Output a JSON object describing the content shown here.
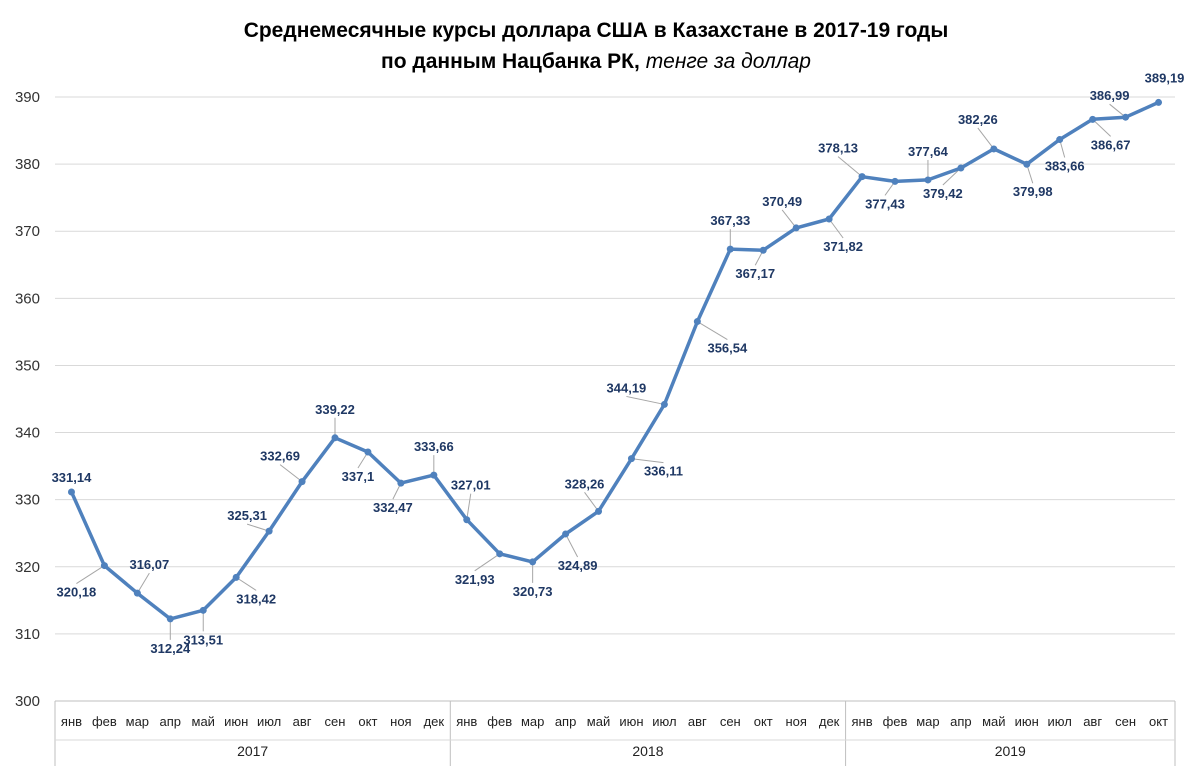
{
  "chart_data": {
    "type": "line",
    "title_main": "Среднемесячные курсы доллара США в Казахстане в 2017-19 годы",
    "title_sub_bold": "по данным Нацбанка РК,",
    "title_sub_italic": "тенге за доллар",
    "ylim": [
      300,
      390
    ],
    "yticks": [
      "300",
      "310",
      "320",
      "330",
      "340",
      "350",
      "360",
      "370",
      "380",
      "390"
    ],
    "grid": true,
    "line_color": "#4f81bd",
    "label_color": "#1f3864",
    "years": [
      {
        "label": "2017",
        "months": 12
      },
      {
        "label": "2018",
        "months": 12
      },
      {
        "label": "2019",
        "months": 10
      }
    ],
    "categories": [
      "янв",
      "фев",
      "мар",
      "апр",
      "май",
      "июн",
      "июл",
      "авг",
      "сен",
      "окт",
      "ноя",
      "дек",
      "янв",
      "фев",
      "мар",
      "апр",
      "май",
      "июн",
      "июл",
      "авг",
      "сен",
      "окт",
      "ноя",
      "дек",
      "янв",
      "фев",
      "мар",
      "апр",
      "май",
      "июн",
      "июл",
      "авг",
      "сен",
      "окт"
    ],
    "values": [
      331.14,
      320.18,
      316.07,
      312.24,
      313.51,
      318.42,
      325.31,
      332.69,
      339.22,
      337.1,
      332.47,
      333.66,
      327.01,
      321.93,
      320.73,
      324.89,
      328.26,
      336.11,
      344.19,
      356.54,
      367.33,
      367.17,
      370.49,
      371.82,
      378.13,
      377.43,
      377.64,
      379.42,
      382.26,
      379.98,
      383.66,
      386.67,
      386.99,
      389.19
    ],
    "value_labels": [
      "331,14",
      "320,18",
      "316,07",
      "312,24",
      "313,51",
      "318,42",
      "325,31",
      "332,69",
      "339,22",
      "337,1",
      "332,47",
      "333,66",
      "327,01",
      "321,93",
      "320,73",
      "324,89",
      "328,26",
      "336,11",
      "344,19",
      "356,54",
      "367,33",
      "367,17",
      "370,49",
      "371,82",
      "378,13",
      "377,43",
      "377,64",
      "379,42",
      "382,26",
      "379,98",
      "383,66",
      "386,67",
      "386,99",
      "389,19"
    ]
  }
}
